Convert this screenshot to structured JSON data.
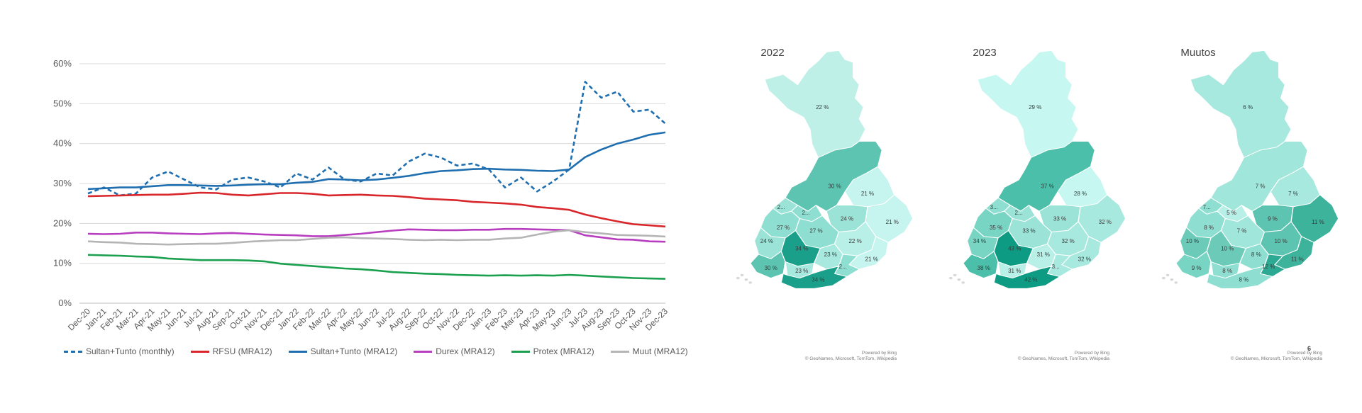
{
  "chart_data": {
    "type": "line",
    "categories": [
      "Dec-20",
      "Jan-21",
      "Feb-21",
      "Mar-21",
      "Apr-21",
      "May-21",
      "Jun-21",
      "Jul-21",
      "Aug-21",
      "Sep-21",
      "Oct-21",
      "Nov-21",
      "Dec-21",
      "Jan-22",
      "Feb-22",
      "Mar-22",
      "Apr-22",
      "May-22",
      "Jun-22",
      "Jul-22",
      "Aug-22",
      "Sep-22",
      "Oct-22",
      "Nov-22",
      "Dec-22",
      "Jan-23",
      "Feb-23",
      "Mar-23",
      "Apr-23",
      "May-23",
      "Jun-23",
      "Jul-23",
      "Aug-23",
      "Sep-23",
      "Oct-23",
      "Nov-23",
      "Dec-23"
    ],
    "y_ticks": [
      "0%",
      "10%",
      "20%",
      "30%",
      "40%",
      "50%",
      "60%"
    ],
    "ylim": [
      0,
      60
    ],
    "grid": true,
    "legend_position": "bottom",
    "series": [
      {
        "name": "Sultan+Tunto (monthly)",
        "color": "#1f6fb0",
        "dashed": true,
        "values": [
          27.5,
          29,
          27,
          27.5,
          31.5,
          33,
          31,
          29,
          28.5,
          31,
          31.5,
          30.5,
          29,
          32.5,
          31,
          34,
          31,
          30.5,
          32.5,
          32,
          35.5,
          37.5,
          36.5,
          34.5,
          35,
          33.5,
          29,
          31.5,
          28,
          30.5,
          33.5,
          55.5,
          51.5,
          53,
          48,
          48.5,
          45
        ]
      },
      {
        "name": "RFSU (MRA12)",
        "color": "#d9262b",
        "dashed": false,
        "values": [
          26.8,
          26.9,
          27,
          27.1,
          27.2,
          27.2,
          27.4,
          27.7,
          27.6,
          27.2,
          27,
          27.3,
          27.6,
          27.6,
          27.4,
          27,
          27.1,
          27.2,
          27,
          26.9,
          26.6,
          26.2,
          26,
          25.8,
          25.4,
          25.2,
          25,
          24.7,
          24.1,
          23.8,
          23.4,
          22.2,
          21.3,
          20.5,
          19.8,
          19.5,
          19.2
        ]
      },
      {
        "name": "Sultan+Tunto (MRA12)",
        "color": "#1f6fb0",
        "dashed": false,
        "values": [
          28.6,
          28.8,
          29,
          29,
          29.3,
          29.6,
          29.6,
          29.5,
          29.4,
          29.5,
          29.7,
          29.8,
          29.8,
          30.2,
          30.4,
          31.1,
          31,
          30.8,
          31,
          31.4,
          31.9,
          32.6,
          33.1,
          33.3,
          33.6,
          33.7,
          33.5,
          33.4,
          33.2,
          33.1,
          33.5,
          36.6,
          38.5,
          40,
          41,
          42.2,
          42.8
        ]
      },
      {
        "name": "Durex (MRA12)",
        "color": "#b83ec0",
        "dashed": false,
        "values": [
          17.4,
          17.3,
          17.4,
          17.7,
          17.7,
          17.5,
          17.4,
          17.3,
          17.5,
          17.6,
          17.4,
          17.2,
          17.1,
          17,
          16.8,
          16.8,
          17.1,
          17.4,
          17.8,
          18.2,
          18.5,
          18.4,
          18.3,
          18.3,
          18.4,
          18.4,
          18.6,
          18.6,
          18.5,
          18.4,
          18.3,
          17,
          16.5,
          16,
          15.9,
          15.5,
          15.4
        ]
      },
      {
        "name": "Protex (MRA12)",
        "color": "#1ba04f",
        "dashed": false,
        "values": [
          12.1,
          12,
          11.9,
          11.7,
          11.6,
          11.2,
          11,
          10.8,
          10.8,
          10.8,
          10.7,
          10.5,
          9.9,
          9.6,
          9.3,
          9,
          8.7,
          8.5,
          8.2,
          7.8,
          7.6,
          7.4,
          7.3,
          7.1,
          7,
          6.9,
          7,
          6.9,
          7,
          6.9,
          7.1,
          6.9,
          6.7,
          6.5,
          6.3,
          6.2,
          6.1
        ]
      },
      {
        "name": "Muut (MRA12)",
        "color": "#b5b5b5",
        "dashed": false,
        "values": [
          15.5,
          15.3,
          15.2,
          14.9,
          14.8,
          14.7,
          14.8,
          14.9,
          14.9,
          15.1,
          15.4,
          15.6,
          15.8,
          15.8,
          16.1,
          16.4,
          16.5,
          16.3,
          16.2,
          16.1,
          15.9,
          15.8,
          15.9,
          15.8,
          15.9,
          15.9,
          16.2,
          16.4,
          17.2,
          17.9,
          18.3,
          17.8,
          17.5,
          17.1,
          17,
          16.9,
          16.7
        ]
      }
    ]
  },
  "maps": [
    {
      "title": "2022",
      "labels": [
        "22 %",
        "30 %",
        "21 %",
        "2...",
        "2...",
        "24 %",
        "21 %",
        "27 %",
        "27 %",
        "24 %",
        "34 %",
        "22 %",
        "23 %",
        "21 %",
        "30 %",
        "23 %",
        "2...",
        "34 %"
      ],
      "fills": [
        "#bff0e8",
        "#5cc4b0",
        "#c6f4ee",
        "#9ae3d6",
        "#8edfd1",
        "#9ae3d6",
        "#c6f4ee",
        "#8edfd1",
        "#8edfd1",
        "#9ae3d6",
        "#1aa08a",
        "#b8efe6",
        "#a8e9df",
        "#c6f4ee",
        "#5cc4b0",
        "#a8e9df",
        "#8edfd1",
        "#1aa08a"
      ]
    },
    {
      "title": "2023",
      "labels": [
        "29 %",
        "37 %",
        "28 %",
        "3...",
        "2...",
        "33 %",
        "32 %",
        "35 %",
        "33 %",
        "34 %",
        "43 %",
        "32 %",
        "31 %",
        "32 %",
        "38 %",
        "31 %",
        "3...",
        "42 %"
      ],
      "fills": [
        "#c6f7f0",
        "#4bbfa9",
        "#c6f7f0",
        "#8edfd1",
        "#9ae3d6",
        "#9ae3d6",
        "#a8e9df",
        "#78d4c3",
        "#9ae3d6",
        "#78d4c3",
        "#0e9b83",
        "#a8e9df",
        "#b8efe6",
        "#a8e9df",
        "#4bbfa9",
        "#b8efe6",
        "#a8e9df",
        "#0e9b83"
      ]
    },
    {
      "title": "Muutos",
      "labels": [
        "6 %",
        "7 %",
        "7 %",
        "7...",
        "5 %",
        "9 %",
        "11 %",
        "8 %",
        "7 %",
        "10 %",
        "10 %",
        "10 %",
        "8 %",
        "11 %",
        "9 %",
        "8 %",
        "12 %",
        "8 %"
      ],
      "fills": [
        "#a8e9df",
        "#a0e6da",
        "#a8e9df",
        "#8edfd1",
        "#b8efe6",
        "#5cc4b0",
        "#3db39c",
        "#8edfd1",
        "#a0e6da",
        "#6ccbb8",
        "#6ccbb8",
        "#5cc4b0",
        "#8edfd1",
        "#3db39c",
        "#78d4c3",
        "#8edfd1",
        "#2ca993",
        "#8edfd1"
      ]
    }
  ],
  "credit": {
    "line1": "Powered by Bing",
    "line2": "© GeoNames, Microsoft, TomTom, Wikipedia"
  },
  "page_number": "6"
}
